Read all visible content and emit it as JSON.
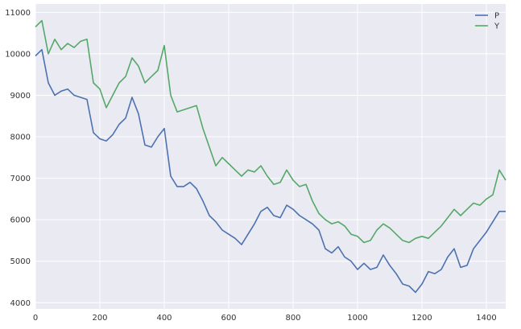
{
  "chart_data": {
    "type": "line",
    "title": "",
    "xlabel": "",
    "ylabel": "",
    "xlim": [
      0,
      1460
    ],
    "ylim": [
      3850,
      11200
    ],
    "grid": true,
    "legend_position": "top-right",
    "colors": {
      "background": "#eaeaf2",
      "grid": "#ffffff",
      "P": "#4c72b0",
      "Y": "#55a868"
    },
    "x_ticks": [
      0,
      200,
      400,
      600,
      800,
      1000,
      1200,
      1400
    ],
    "y_ticks": [
      4000,
      5000,
      6000,
      7000,
      8000,
      9000,
      10000,
      11000
    ],
    "series": [
      {
        "name": "P",
        "color": "#4c72b0",
        "x": [
          0,
          20,
          40,
          60,
          80,
          100,
          120,
          140,
          160,
          180,
          200,
          220,
          240,
          260,
          280,
          300,
          320,
          340,
          360,
          380,
          400,
          420,
          440,
          460,
          480,
          500,
          520,
          540,
          560,
          580,
          600,
          620,
          640,
          660,
          680,
          700,
          720,
          740,
          760,
          780,
          800,
          820,
          840,
          860,
          880,
          900,
          920,
          940,
          960,
          980,
          1000,
          1020,
          1040,
          1060,
          1080,
          1100,
          1120,
          1140,
          1160,
          1180,
          1200,
          1220,
          1240,
          1260,
          1280,
          1300,
          1320,
          1340,
          1360,
          1380,
          1400,
          1420,
          1440,
          1460
        ],
        "y": [
          9950,
          10100,
          9300,
          9000,
          9100,
          9150,
          9000,
          8950,
          8900,
          8100,
          7950,
          7900,
          8050,
          8300,
          8450,
          8950,
          8550,
          7800,
          7750,
          8000,
          8200,
          7050,
          6800,
          6800,
          6900,
          6750,
          6450,
          6100,
          5950,
          5750,
          5650,
          5550,
          5400,
          5650,
          5900,
          6200,
          6300,
          6100,
          6050,
          6350,
          6250,
          6100,
          6000,
          5900,
          5750,
          5300,
          5200,
          5350,
          5100,
          5000,
          4800,
          4950,
          4800,
          4850,
          5150,
          4900,
          4700,
          4450,
          4400,
          4250,
          4450,
          4750,
          4700,
          4800,
          5100,
          5300,
          4850,
          4900,
          5300,
          5500,
          5700,
          5950,
          6200,
          6200
        ]
      },
      {
        "name": "Y",
        "color": "#55a868",
        "x": [
          0,
          20,
          40,
          60,
          80,
          100,
          120,
          140,
          160,
          180,
          200,
          220,
          240,
          260,
          280,
          300,
          320,
          340,
          360,
          380,
          400,
          420,
          440,
          460,
          480,
          500,
          520,
          540,
          560,
          580,
          600,
          620,
          640,
          660,
          680,
          700,
          720,
          740,
          760,
          780,
          800,
          820,
          840,
          860,
          880,
          900,
          920,
          940,
          960,
          980,
          1000,
          1020,
          1040,
          1060,
          1080,
          1100,
          1120,
          1140,
          1160,
          1180,
          1200,
          1220,
          1240,
          1260,
          1280,
          1300,
          1320,
          1340,
          1360,
          1380,
          1400,
          1420,
          1440,
          1460
        ],
        "y": [
          10650,
          10800,
          10000,
          10350,
          10100,
          10250,
          10150,
          10300,
          10350,
          9300,
          9150,
          8700,
          9000,
          9300,
          9450,
          9900,
          9700,
          9300,
          9450,
          9600,
          10200,
          9000,
          8600,
          8650,
          8700,
          8750,
          8200,
          7750,
          7300,
          7500,
          7350,
          7200,
          7050,
          7200,
          7150,
          7300,
          7050,
          6850,
          6900,
          7200,
          6950,
          6800,
          6850,
          6450,
          6150,
          6000,
          5900,
          5950,
          5850,
          5650,
          5600,
          5450,
          5500,
          5750,
          5900,
          5800,
          5650,
          5500,
          5450,
          5550,
          5600,
          5550,
          5700,
          5850,
          6050,
          6250,
          6100,
          6250,
          6400,
          6350,
          6500,
          6600,
          7200,
          6950
        ]
      }
    ]
  }
}
